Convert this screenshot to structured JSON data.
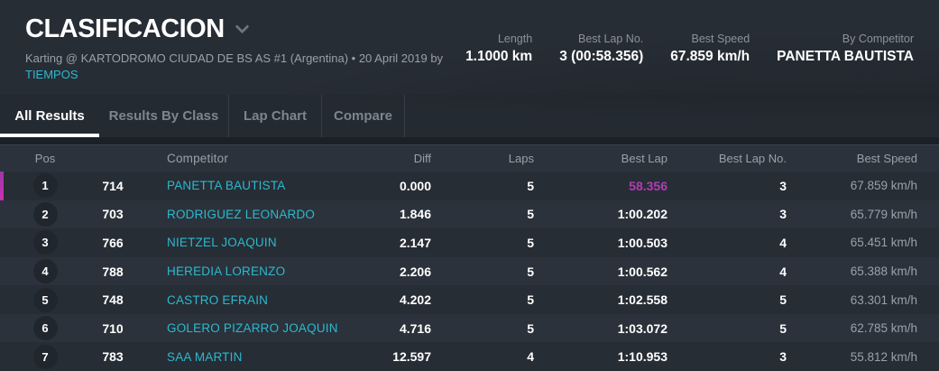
{
  "colors": {
    "accent_cyan": "#2cb9ce",
    "highlight_magenta": "#b23cb6",
    "header_bg": "#272d35",
    "active_tab_underline": "#ffffff"
  },
  "header": {
    "title": "CLASIFICACION",
    "subtitle": "Karting @ KARTODROMO CIUDAD DE BS AS #1 (Argentina) • 20 April 2019 by",
    "subtitle_link": "TIEMPOS",
    "stats": [
      {
        "label": "Length",
        "value": "1.1000 km"
      },
      {
        "label": "Best Lap No.",
        "value": "3 (00:58.356)"
      },
      {
        "label": "Best Speed",
        "value": "67.859 km/h"
      },
      {
        "label": "By Competitor",
        "value": "PANETTA BAUTISTA"
      }
    ]
  },
  "tabs": [
    {
      "label": "All Results",
      "active": true
    },
    {
      "label": "Results By Class",
      "active": false
    },
    {
      "label": "Lap Chart",
      "active": false
    },
    {
      "label": "Compare",
      "active": false
    }
  ],
  "table": {
    "columns": [
      "Pos",
      "Competitor",
      "Diff",
      "Laps",
      "Best Lap",
      "Best Lap No.",
      "Best Speed"
    ],
    "rows": [
      {
        "pos": "1",
        "no": "714",
        "competitor": "PANETTA BAUTISTA",
        "diff": "0.000",
        "laps": "5",
        "best_lap": "58.356",
        "best_lap_no": "3",
        "best_speed": "67.859 km/h"
      },
      {
        "pos": "2",
        "no": "703",
        "competitor": "RODRIGUEZ LEONARDO",
        "diff": "1.846",
        "laps": "5",
        "best_lap": "1:00.202",
        "best_lap_no": "3",
        "best_speed": "65.779 km/h"
      },
      {
        "pos": "3",
        "no": "766",
        "competitor": "NIETZEL JOAQUIN",
        "diff": "2.147",
        "laps": "5",
        "best_lap": "1:00.503",
        "best_lap_no": "4",
        "best_speed": "65.451 km/h"
      },
      {
        "pos": "4",
        "no": "788",
        "competitor": "HEREDIA LORENZO",
        "diff": "2.206",
        "laps": "5",
        "best_lap": "1:00.562",
        "best_lap_no": "4",
        "best_speed": "65.388 km/h"
      },
      {
        "pos": "5",
        "no": "748",
        "competitor": "CASTRO EFRAIN",
        "diff": "4.202",
        "laps": "5",
        "best_lap": "1:02.558",
        "best_lap_no": "5",
        "best_speed": "63.301 km/h"
      },
      {
        "pos": "6",
        "no": "710",
        "competitor": "GOLERO PIZARRO JOAQUIN",
        "diff": "4.716",
        "laps": "5",
        "best_lap": "1:03.072",
        "best_lap_no": "5",
        "best_speed": "62.785 km/h"
      },
      {
        "pos": "7",
        "no": "783",
        "competitor": "SAA MARTIN",
        "diff": "12.597",
        "laps": "4",
        "best_lap": "1:10.953",
        "best_lap_no": "3",
        "best_speed": "55.812 km/h"
      }
    ]
  }
}
